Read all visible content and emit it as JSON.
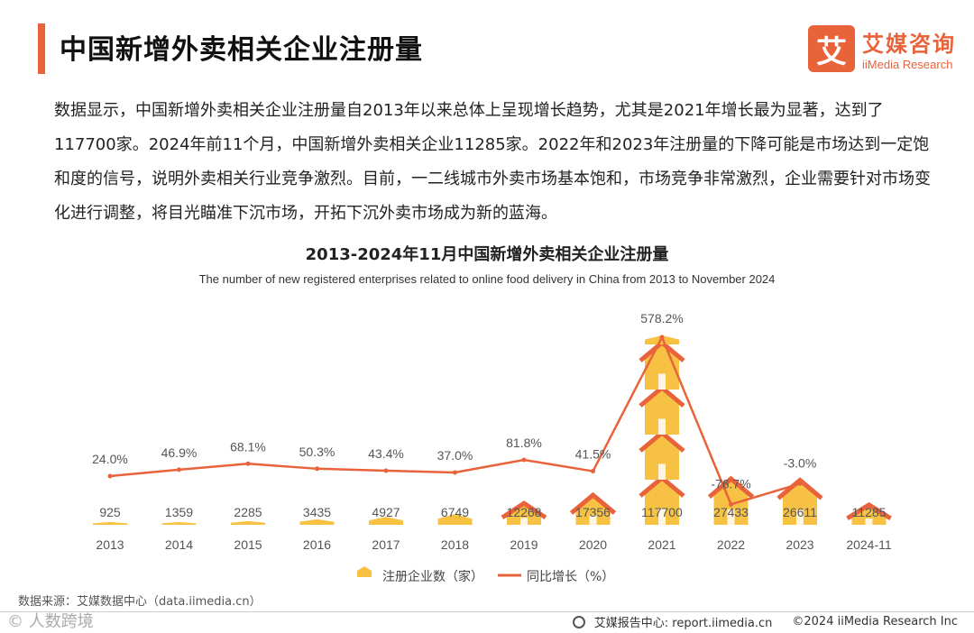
{
  "header": {
    "title": "中国新增外卖相关企业注册量",
    "brand_logo_char": "艾",
    "brand_cn": "艾媒咨询",
    "brand_en": "iiMedia Research"
  },
  "description": "数据显示，中国新增外卖相关企业注册量自2013年以来总体上呈现增长趋势，尤其是2021年增长最为显著，达到了117700家。2024年前11个月，中国新增外卖相关企业11285家。2022年和2023年注册量的下降可能是市场达到一定饱和度的信号，说明外卖相关行业竞争激烈。目前，一二线城市外卖市场基本饱和，市场竞争非常激烈，企业需要针对市场变化进行调整，将目光瞄准下沉市场，开拓下沉外卖市场成为新的蓝海。",
  "chart_data": {
    "type": "bar",
    "title": "2013-2024年11月中国新增外卖相关企业注册量",
    "subtitle": "The number of new registered enterprises related to online food delivery in China from 2013 to November 2024",
    "categories": [
      "2013",
      "2014",
      "2015",
      "2016",
      "2017",
      "2018",
      "2019",
      "2020",
      "2021",
      "2022",
      "2023",
      "2024-11"
    ],
    "series": [
      {
        "name": "注册企业数（家）",
        "type": "bar",
        "values": [
          925,
          1359,
          2285,
          3435,
          4927,
          6749,
          12268,
          17356,
          117700,
          27433,
          26611,
          11285
        ],
        "labels": [
          "925",
          "1359",
          "2285",
          "3435",
          "4927",
          "6749",
          "12268",
          "17356",
          "117700",
          "27433",
          "26611",
          "11285"
        ]
      },
      {
        "name": "同比增长（%）",
        "type": "line",
        "values": [
          24.0,
          46.9,
          68.1,
          50.3,
          43.4,
          37.0,
          81.8,
          41.5,
          578.2,
          -76.7,
          -3.0,
          null
        ],
        "labels": [
          "24.0%",
          "46.9%",
          "68.1%",
          "50.3%",
          "43.4%",
          "37.0%",
          "81.8%",
          "41.5%",
          "578.2%",
          "-76.7%",
          "-3.0%",
          ""
        ]
      }
    ],
    "legend_position": "bottom",
    "grid": false
  },
  "colors": {
    "accent": "#e8623a",
    "bar_fill": "#f7c243",
    "line": "#e8623a"
  },
  "footer": {
    "source": "数据来源：艾媒数据中心（data.iimedia.cn）",
    "watermark": "©  人数跨境",
    "report": "艾媒报告中心: report.iimedia.cn",
    "copyright": "©2024  iiMedia Research  Inc"
  }
}
